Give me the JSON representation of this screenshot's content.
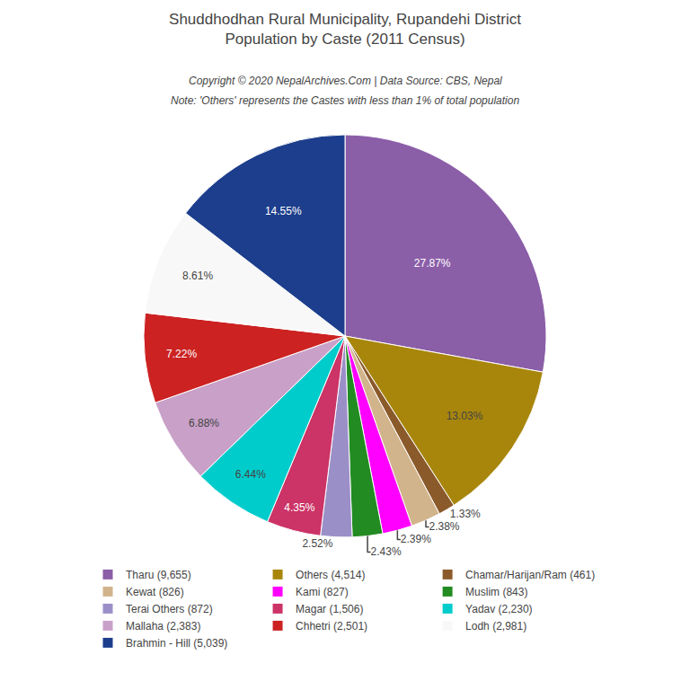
{
  "chart_data": {
    "type": "pie",
    "title": "Shuddhodhan Rural Municipality, Rupandehi District",
    "subtitle": "Population by Caste (2011 Census)",
    "annotations": [
      "Copyright © 2020 NepalArchives.Com | Data Source: CBS, Nepal",
      "Note: 'Others' represents the Castes with less than 1% of total population"
    ],
    "categories": [
      "Tharu (9,655)",
      "Others (4,514)",
      "Chamar/Harijan/Ram (461)",
      "Kewat (826)",
      "Kami (827)",
      "Muslim (843)",
      "Terai Others (872)",
      "Magar (1,506)",
      "Yadav (2,230)",
      "Mallaha (2,383)",
      "Chhetri (2,501)",
      "Lodh (2,981)",
      "Brahmin - Hill (5,039)"
    ],
    "values": [
      27.87,
      13.03,
      1.33,
      2.38,
      2.39,
      2.43,
      2.52,
      4.35,
      6.44,
      6.88,
      7.22,
      8.61,
      14.55
    ],
    "value_labels": [
      "27.87%",
      "13.03%",
      "1.33%",
      "2.38%",
      "2.39%",
      "2.43%",
      "2.52%",
      "4.35%",
      "6.44%",
      "6.88%",
      "7.22%",
      "8.61%",
      "14.55%"
    ],
    "colors": [
      "#8B5EA8",
      "#A8860C",
      "#8B5A2B",
      "#D2B48C",
      "#FF00FF",
      "#228B22",
      "#9B8FC8",
      "#CC3366",
      "#00CCCC",
      "#C8A0C8",
      "#CC2222",
      "#F8F8F8",
      "#1C3E8C"
    ],
    "data_labels": true,
    "legend": "bottom"
  }
}
